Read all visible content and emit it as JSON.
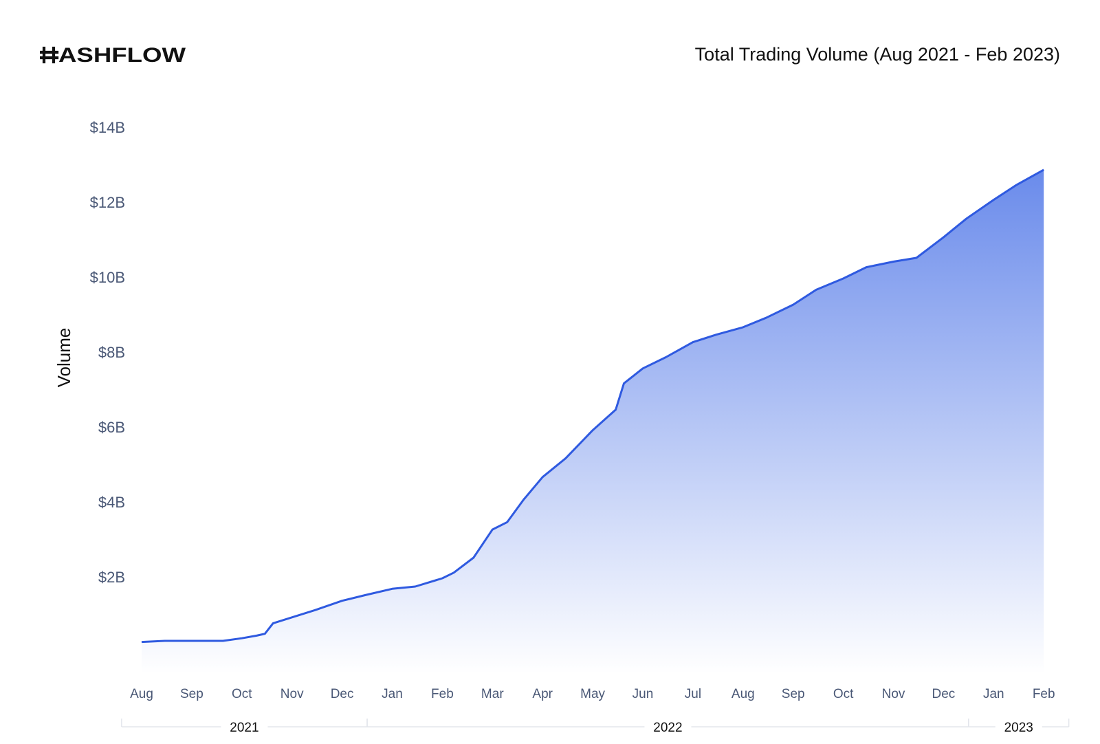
{
  "brand": {
    "logo_text": "HASHFLOW"
  },
  "colors": {
    "line": "#2f5ae0",
    "fill_top": "#6a8beb",
    "fill_bottom": "#ffffff",
    "tick_text": "#4a5876",
    "year_rule": "#e3e6ec"
  },
  "chart_data": {
    "type": "area",
    "title": "Total Trading Volume (Aug 2021 - Feb 2023)",
    "xlabel": "",
    "ylabel": "Volume",
    "ylim": [
      -1.4,
      14
    ],
    "yticks": [
      2,
      4,
      6,
      8,
      10,
      12,
      14
    ],
    "ytick_labels": [
      "$2B",
      "$4B",
      "$6B",
      "$8B",
      "$10B",
      "$12B",
      "$14B"
    ],
    "x_ticks": [
      "Aug",
      "Sep",
      "Oct",
      "Nov",
      "Dec",
      "Jan",
      "Feb",
      "Mar",
      "Apr",
      "May",
      "Jun",
      "Jul",
      "Aug",
      "Sep",
      "Oct",
      "Nov",
      "Dec",
      "Jan",
      "Feb"
    ],
    "year_groups": [
      {
        "label": "2021",
        "from_month": -0.4,
        "to_month": 4.5
      },
      {
        "label": "2022",
        "from_month": 4.5,
        "to_month": 16.5
      },
      {
        "label": "2023",
        "from_month": 16.5,
        "to_month": 18.5
      }
    ],
    "grid": false,
    "legend": "none",
    "series": [
      {
        "x": [
          "2021-08-01",
          "2021-08-15",
          "2021-09-01",
          "2021-09-20",
          "2021-10-01",
          "2021-10-10",
          "2021-10-15",
          "2021-10-20",
          "2021-10-31",
          "2021-11-15",
          "2021-12-01",
          "2021-12-15",
          "2022-01-01",
          "2022-01-15",
          "2022-02-01",
          "2022-02-08",
          "2022-02-20",
          "2022-03-01",
          "2022-03-10",
          "2022-03-20",
          "2022-04-01",
          "2022-04-15",
          "2022-05-01",
          "2022-05-15",
          "2022-05-20",
          "2022-06-01",
          "2022-06-15",
          "2022-07-01",
          "2022-07-15",
          "2022-08-01",
          "2022-08-15",
          "2022-09-01",
          "2022-09-15",
          "2022-10-01",
          "2022-10-15",
          "2022-11-01",
          "2022-11-15",
          "2022-12-01",
          "2022-12-15",
          "2023-01-01",
          "2023-01-15",
          "2023-02-01"
        ],
        "values": [
          0.3,
          0.33,
          0.33,
          0.33,
          0.4,
          0.47,
          0.52,
          0.8,
          0.95,
          1.15,
          1.4,
          1.55,
          1.72,
          1.78,
          2.0,
          2.15,
          2.55,
          3.3,
          3.5,
          4.1,
          4.7,
          5.2,
          5.95,
          6.5,
          7.2,
          7.6,
          7.9,
          8.3,
          8.5,
          8.7,
          8.95,
          9.3,
          9.7,
          10.0,
          10.3,
          10.45,
          10.55,
          11.1,
          11.6,
          12.1,
          12.5,
          12.9
        ]
      }
    ]
  }
}
